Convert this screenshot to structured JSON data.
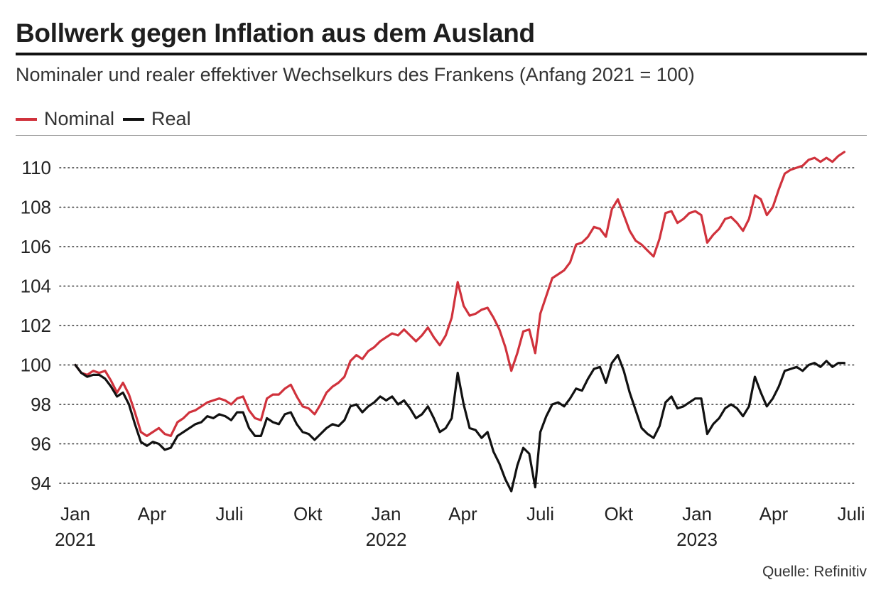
{
  "title": "Bollwerk gegen Inflation aus dem Ausland",
  "subtitle": "Nominaler und realer effektiver Wechselkurs des Frankens (Anfang 2021 = 100)",
  "source": "Quelle: Refinitiv",
  "chart_data": {
    "type": "line",
    "title": "Bollwerk gegen Inflation aus dem Ausland",
    "subtitle": "Nominaler und realer effektiver Wechselkurs des Frankens (Anfang 2021 = 100)",
    "xlabel": "",
    "ylabel": "",
    "ylim": [
      93.3,
      111.2
    ],
    "yticks": [
      94,
      96,
      98,
      100,
      102,
      104,
      106,
      108,
      110
    ],
    "xlim": [
      "2021-01-01",
      "2023-07-01"
    ],
    "xticks": [
      {
        "date": "2021-01-01",
        "label": "Jan",
        "year": "2021"
      },
      {
        "date": "2021-04-01",
        "label": "Apr",
        "year": ""
      },
      {
        "date": "2021-07-01",
        "label": "Juli",
        "year": ""
      },
      {
        "date": "2021-10-01",
        "label": "Okt",
        "year": ""
      },
      {
        "date": "2022-01-01",
        "label": "Jan",
        "year": "2022"
      },
      {
        "date": "2022-04-01",
        "label": "Apr",
        "year": ""
      },
      {
        "date": "2022-07-01",
        "label": "Juli",
        "year": ""
      },
      {
        "date": "2022-10-01",
        "label": "Okt",
        "year": ""
      },
      {
        "date": "2023-01-01",
        "label": "Jan",
        "year": "2023"
      },
      {
        "date": "2023-04-01",
        "label": "Apr",
        "year": ""
      },
      {
        "date": "2023-07-01",
        "label": "Juli",
        "year": ""
      }
    ],
    "grid": "horizontal-dotted",
    "legend_position": "top-left",
    "series": [
      {
        "name": "Nominal",
        "color": "#d0323c",
        "points": [
          [
            "2021-01-01",
            100.0
          ],
          [
            "2021-01-08",
            99.6
          ],
          [
            "2021-01-15",
            99.5
          ],
          [
            "2021-01-22",
            99.7
          ],
          [
            "2021-01-29",
            99.6
          ],
          [
            "2021-02-05",
            99.7
          ],
          [
            "2021-02-12",
            99.2
          ],
          [
            "2021-02-19",
            98.6
          ],
          [
            "2021-02-26",
            99.1
          ],
          [
            "2021-03-05",
            98.5
          ],
          [
            "2021-03-12",
            97.6
          ],
          [
            "2021-03-19",
            96.6
          ],
          [
            "2021-03-26",
            96.4
          ],
          [
            "2021-04-02",
            96.6
          ],
          [
            "2021-04-09",
            96.8
          ],
          [
            "2021-04-16",
            96.5
          ],
          [
            "2021-04-23",
            96.4
          ],
          [
            "2021-05-01",
            97.1
          ],
          [
            "2021-05-08",
            97.3
          ],
          [
            "2021-05-15",
            97.6
          ],
          [
            "2021-05-22",
            97.7
          ],
          [
            "2021-05-29",
            97.9
          ],
          [
            "2021-06-05",
            98.1
          ],
          [
            "2021-06-12",
            98.2
          ],
          [
            "2021-06-19",
            98.3
          ],
          [
            "2021-06-26",
            98.2
          ],
          [
            "2021-07-03",
            98.0
          ],
          [
            "2021-07-10",
            98.3
          ],
          [
            "2021-07-17",
            98.4
          ],
          [
            "2021-07-24",
            97.7
          ],
          [
            "2021-07-31",
            97.3
          ],
          [
            "2021-08-07",
            97.2
          ],
          [
            "2021-08-14",
            98.3
          ],
          [
            "2021-08-21",
            98.5
          ],
          [
            "2021-08-28",
            98.5
          ],
          [
            "2021-09-04",
            98.8
          ],
          [
            "2021-09-11",
            99.0
          ],
          [
            "2021-09-18",
            98.4
          ],
          [
            "2021-09-25",
            97.9
          ],
          [
            "2021-10-02",
            97.8
          ],
          [
            "2021-10-09",
            97.5
          ],
          [
            "2021-10-16",
            98.0
          ],
          [
            "2021-10-23",
            98.6
          ],
          [
            "2021-10-30",
            98.9
          ],
          [
            "2021-11-06",
            99.1
          ],
          [
            "2021-11-13",
            99.4
          ],
          [
            "2021-11-20",
            100.2
          ],
          [
            "2021-11-27",
            100.5
          ],
          [
            "2021-12-04",
            100.3
          ],
          [
            "2021-12-11",
            100.7
          ],
          [
            "2021-12-18",
            100.9
          ],
          [
            "2021-12-25",
            101.2
          ],
          [
            "2022-01-01",
            101.4
          ],
          [
            "2022-01-08",
            101.6
          ],
          [
            "2022-01-15",
            101.5
          ],
          [
            "2022-01-22",
            101.8
          ],
          [
            "2022-01-29",
            101.5
          ],
          [
            "2022-02-05",
            101.2
          ],
          [
            "2022-02-12",
            101.5
          ],
          [
            "2022-02-19",
            101.9
          ],
          [
            "2022-02-26",
            101.4
          ],
          [
            "2022-03-05",
            101.0
          ],
          [
            "2022-03-12",
            101.5
          ],
          [
            "2022-03-19",
            102.4
          ],
          [
            "2022-03-26",
            104.2
          ],
          [
            "2022-04-02",
            103.0
          ],
          [
            "2022-04-09",
            102.5
          ],
          [
            "2022-04-16",
            102.6
          ],
          [
            "2022-04-23",
            102.8
          ],
          [
            "2022-04-30",
            102.9
          ],
          [
            "2022-05-07",
            102.4
          ],
          [
            "2022-05-14",
            101.8
          ],
          [
            "2022-05-21",
            100.9
          ],
          [
            "2022-05-28",
            99.7
          ],
          [
            "2022-06-04",
            100.6
          ],
          [
            "2022-06-11",
            101.7
          ],
          [
            "2022-06-18",
            101.8
          ],
          [
            "2022-06-25",
            100.6
          ],
          [
            "2022-07-01",
            102.6
          ],
          [
            "2022-07-08",
            103.5
          ],
          [
            "2022-07-15",
            104.4
          ],
          [
            "2022-07-22",
            104.6
          ],
          [
            "2022-07-29",
            104.8
          ],
          [
            "2022-08-05",
            105.2
          ],
          [
            "2022-08-12",
            106.1
          ],
          [
            "2022-08-19",
            106.2
          ],
          [
            "2022-08-26",
            106.5
          ],
          [
            "2022-09-02",
            107.0
          ],
          [
            "2022-09-09",
            106.9
          ],
          [
            "2022-09-16",
            106.5
          ],
          [
            "2022-09-23",
            107.9
          ],
          [
            "2022-09-30",
            108.4
          ],
          [
            "2022-10-07",
            107.6
          ],
          [
            "2022-10-14",
            106.8
          ],
          [
            "2022-10-21",
            106.3
          ],
          [
            "2022-10-28",
            106.1
          ],
          [
            "2022-11-04",
            105.8
          ],
          [
            "2022-11-11",
            105.5
          ],
          [
            "2022-11-18",
            106.4
          ],
          [
            "2022-11-25",
            107.7
          ],
          [
            "2022-12-02",
            107.8
          ],
          [
            "2022-12-09",
            107.2
          ],
          [
            "2022-12-16",
            107.4
          ],
          [
            "2022-12-23",
            107.7
          ],
          [
            "2022-12-30",
            107.8
          ],
          [
            "2023-01-06",
            107.6
          ],
          [
            "2023-01-13",
            106.2
          ],
          [
            "2023-01-20",
            106.6
          ],
          [
            "2023-01-27",
            106.9
          ],
          [
            "2023-02-03",
            107.4
          ],
          [
            "2023-02-10",
            107.5
          ],
          [
            "2023-02-17",
            107.2
          ],
          [
            "2023-02-24",
            106.8
          ],
          [
            "2023-03-03",
            107.4
          ],
          [
            "2023-03-10",
            108.6
          ],
          [
            "2023-03-17",
            108.4
          ],
          [
            "2023-03-24",
            107.6
          ],
          [
            "2023-03-31",
            108.0
          ],
          [
            "2023-04-07",
            108.9
          ],
          [
            "2023-04-14",
            109.7
          ],
          [
            "2023-04-21",
            109.9
          ],
          [
            "2023-04-28",
            110.0
          ],
          [
            "2023-05-05",
            110.1
          ],
          [
            "2023-05-12",
            110.4
          ],
          [
            "2023-05-19",
            110.5
          ],
          [
            "2023-05-26",
            110.3
          ],
          [
            "2023-06-02",
            110.5
          ],
          [
            "2023-06-09",
            110.3
          ],
          [
            "2023-06-16",
            110.6
          ],
          [
            "2023-06-23",
            110.8
          ]
        ]
      },
      {
        "name": "Real",
        "color": "#111111",
        "points": [
          [
            "2021-01-01",
            100.0
          ],
          [
            "2021-01-08",
            99.6
          ],
          [
            "2021-01-15",
            99.4
          ],
          [
            "2021-01-22",
            99.5
          ],
          [
            "2021-01-29",
            99.5
          ],
          [
            "2021-02-05",
            99.3
          ],
          [
            "2021-02-12",
            98.9
          ],
          [
            "2021-02-19",
            98.4
          ],
          [
            "2021-02-26",
            98.6
          ],
          [
            "2021-03-05",
            98.0
          ],
          [
            "2021-03-12",
            97.0
          ],
          [
            "2021-03-19",
            96.1
          ],
          [
            "2021-03-26",
            95.9
          ],
          [
            "2021-04-02",
            96.1
          ],
          [
            "2021-04-09",
            96.0
          ],
          [
            "2021-04-16",
            95.7
          ],
          [
            "2021-04-23",
            95.8
          ],
          [
            "2021-05-01",
            96.4
          ],
          [
            "2021-05-08",
            96.6
          ],
          [
            "2021-05-15",
            96.8
          ],
          [
            "2021-05-22",
            97.0
          ],
          [
            "2021-05-29",
            97.1
          ],
          [
            "2021-06-05",
            97.4
          ],
          [
            "2021-06-12",
            97.3
          ],
          [
            "2021-06-19",
            97.5
          ],
          [
            "2021-06-26",
            97.4
          ],
          [
            "2021-07-03",
            97.2
          ],
          [
            "2021-07-10",
            97.6
          ],
          [
            "2021-07-17",
            97.6
          ],
          [
            "2021-07-24",
            96.8
          ],
          [
            "2021-07-31",
            96.4
          ],
          [
            "2021-08-07",
            96.4
          ],
          [
            "2021-08-14",
            97.3
          ],
          [
            "2021-08-21",
            97.1
          ],
          [
            "2021-08-28",
            97.0
          ],
          [
            "2021-09-04",
            97.5
          ],
          [
            "2021-09-11",
            97.6
          ],
          [
            "2021-09-18",
            97.0
          ],
          [
            "2021-09-25",
            96.6
          ],
          [
            "2021-10-02",
            96.5
          ],
          [
            "2021-10-09",
            96.2
          ],
          [
            "2021-10-16",
            96.5
          ],
          [
            "2021-10-23",
            96.8
          ],
          [
            "2021-10-30",
            97.0
          ],
          [
            "2021-11-06",
            96.9
          ],
          [
            "2021-11-13",
            97.2
          ],
          [
            "2021-11-20",
            97.9
          ],
          [
            "2021-11-27",
            98.0
          ],
          [
            "2021-12-04",
            97.6
          ],
          [
            "2021-12-11",
            97.9
          ],
          [
            "2021-12-18",
            98.1
          ],
          [
            "2021-12-25",
            98.4
          ],
          [
            "2022-01-01",
            98.2
          ],
          [
            "2022-01-08",
            98.4
          ],
          [
            "2022-01-15",
            98.0
          ],
          [
            "2022-01-22",
            98.2
          ],
          [
            "2022-01-29",
            97.8
          ],
          [
            "2022-02-05",
            97.3
          ],
          [
            "2022-02-12",
            97.5
          ],
          [
            "2022-02-19",
            97.9
          ],
          [
            "2022-02-26",
            97.3
          ],
          [
            "2022-03-05",
            96.6
          ],
          [
            "2022-03-12",
            96.8
          ],
          [
            "2022-03-19",
            97.3
          ],
          [
            "2022-03-26",
            99.6
          ],
          [
            "2022-04-02",
            98.0
          ],
          [
            "2022-04-09",
            96.8
          ],
          [
            "2022-04-16",
            96.7
          ],
          [
            "2022-04-23",
            96.3
          ],
          [
            "2022-04-30",
            96.6
          ],
          [
            "2022-05-07",
            95.6
          ],
          [
            "2022-05-14",
            95.0
          ],
          [
            "2022-05-21",
            94.2
          ],
          [
            "2022-05-28",
            93.6
          ],
          [
            "2022-06-04",
            94.9
          ],
          [
            "2022-06-11",
            95.8
          ],
          [
            "2022-06-18",
            95.5
          ],
          [
            "2022-06-25",
            93.8
          ],
          [
            "2022-07-01",
            96.6
          ],
          [
            "2022-07-08",
            97.4
          ],
          [
            "2022-07-15",
            98.0
          ],
          [
            "2022-07-22",
            98.1
          ],
          [
            "2022-07-29",
            97.9
          ],
          [
            "2022-08-05",
            98.3
          ],
          [
            "2022-08-12",
            98.8
          ],
          [
            "2022-08-19",
            98.7
          ],
          [
            "2022-08-26",
            99.3
          ],
          [
            "2022-09-02",
            99.8
          ],
          [
            "2022-09-09",
            99.9
          ],
          [
            "2022-09-16",
            99.1
          ],
          [
            "2022-09-23",
            100.1
          ],
          [
            "2022-09-30",
            100.5
          ],
          [
            "2022-10-07",
            99.7
          ],
          [
            "2022-10-14",
            98.6
          ],
          [
            "2022-10-21",
            97.7
          ],
          [
            "2022-10-28",
            96.8
          ],
          [
            "2022-11-04",
            96.5
          ],
          [
            "2022-11-11",
            96.3
          ],
          [
            "2022-11-18",
            96.9
          ],
          [
            "2022-11-25",
            98.1
          ],
          [
            "2022-12-02",
            98.4
          ],
          [
            "2022-12-09",
            97.8
          ],
          [
            "2022-12-16",
            97.9
          ],
          [
            "2022-12-23",
            98.1
          ],
          [
            "2022-12-30",
            98.3
          ],
          [
            "2023-01-06",
            98.3
          ],
          [
            "2023-01-13",
            96.5
          ],
          [
            "2023-01-20",
            97.0
          ],
          [
            "2023-01-27",
            97.3
          ],
          [
            "2023-02-03",
            97.8
          ],
          [
            "2023-02-10",
            98.0
          ],
          [
            "2023-02-17",
            97.8
          ],
          [
            "2023-02-24",
            97.4
          ],
          [
            "2023-03-03",
            97.9
          ],
          [
            "2023-03-10",
            99.4
          ],
          [
            "2023-03-17",
            98.6
          ],
          [
            "2023-03-24",
            97.9
          ],
          [
            "2023-03-31",
            98.3
          ],
          [
            "2023-04-07",
            98.9
          ],
          [
            "2023-04-14",
            99.7
          ],
          [
            "2023-04-21",
            99.8
          ],
          [
            "2023-04-28",
            99.9
          ],
          [
            "2023-05-05",
            99.7
          ],
          [
            "2023-05-12",
            100.0
          ],
          [
            "2023-05-19",
            100.1
          ],
          [
            "2023-05-26",
            99.9
          ],
          [
            "2023-06-02",
            100.2
          ],
          [
            "2023-06-09",
            99.9
          ],
          [
            "2023-06-16",
            100.1
          ],
          [
            "2023-06-23",
            100.1
          ]
        ]
      }
    ]
  }
}
